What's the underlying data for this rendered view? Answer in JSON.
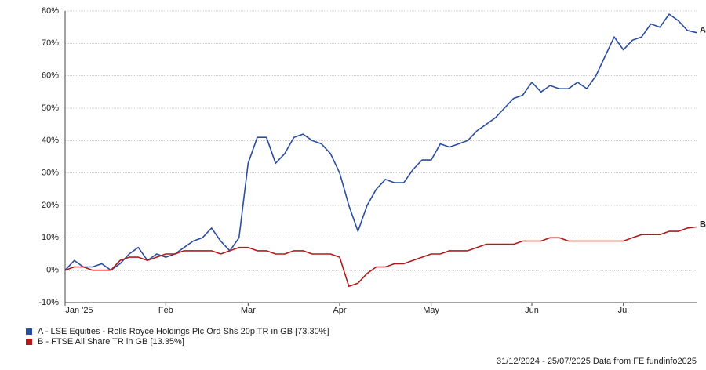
{
  "chart_data": {
    "type": "line",
    "categories": [
      "Jan '25",
      null,
      null,
      null,
      null,
      null,
      null,
      null,
      null,
      null,
      null,
      "Feb",
      null,
      null,
      null,
      null,
      null,
      null,
      null,
      null,
      "Mar",
      null,
      null,
      null,
      null,
      null,
      null,
      null,
      null,
      null,
      "Apr",
      null,
      null,
      null,
      null,
      null,
      null,
      null,
      null,
      null,
      "May",
      null,
      null,
      null,
      null,
      null,
      null,
      null,
      null,
      null,
      null,
      "Jun",
      null,
      null,
      null,
      null,
      null,
      null,
      null,
      null,
      null,
      "Jul",
      null,
      null,
      null,
      null,
      null,
      null,
      null,
      null
    ],
    "series": [
      {
        "name": "A - LSE Equities - Rolls Royce Holdings Plc Ord Shs 20p TR in GB [73.30%]",
        "end_label": "A",
        "color": "#2b4f9e",
        "values": [
          0,
          3,
          1,
          1,
          2,
          0,
          2,
          5,
          7,
          3,
          5,
          4,
          5,
          7,
          9,
          10,
          13,
          9,
          6,
          10,
          33,
          41,
          41,
          33,
          36,
          41,
          42,
          40,
          39,
          36,
          30,
          20,
          12,
          20,
          25,
          28,
          27,
          27,
          31,
          34,
          34,
          39,
          38,
          39,
          40,
          43,
          45,
          47,
          50,
          53,
          54,
          58,
          55,
          57,
          56,
          56,
          58,
          56,
          60,
          66,
          72,
          68,
          71,
          72,
          76,
          75,
          79,
          77,
          74,
          73.3
        ]
      },
      {
        "name": "B - FTSE All Share TR in GB [13.35%]",
        "end_label": "B",
        "color": "#b01c1c",
        "values": [
          0,
          1,
          1,
          0,
          0,
          0,
          3,
          4,
          4,
          3,
          4,
          5,
          5,
          6,
          6,
          6,
          6,
          5,
          6,
          7,
          7,
          6,
          6,
          5,
          5,
          6,
          6,
          5,
          5,
          5,
          4,
          -5,
          -4,
          -1,
          1,
          1,
          2,
          2,
          3,
          4,
          5,
          5,
          6,
          6,
          6,
          7,
          8,
          8,
          8,
          8,
          9,
          9,
          9,
          10,
          10,
          9,
          9,
          9,
          9,
          9,
          9,
          9,
          10,
          11,
          11,
          11,
          12,
          12,
          13,
          13.35
        ]
      }
    ],
    "ylim": [
      -10,
      80
    ],
    "yticks": [
      {
        "value": -10,
        "label": "-10%"
      },
      {
        "value": 0,
        "label": "0%"
      },
      {
        "value": 10,
        "label": "10%"
      },
      {
        "value": 20,
        "label": "20%"
      },
      {
        "value": 30,
        "label": "30%"
      },
      {
        "value": 40,
        "label": "40%"
      },
      {
        "value": 50,
        "label": "50%"
      },
      {
        "value": 60,
        "label": "60%"
      },
      {
        "value": 70,
        "label": "70%"
      },
      {
        "value": 80,
        "label": "80%"
      }
    ],
    "grid": true,
    "source": "31/12/2024 - 25/07/2025 Data from FE fundinfo2025"
  }
}
